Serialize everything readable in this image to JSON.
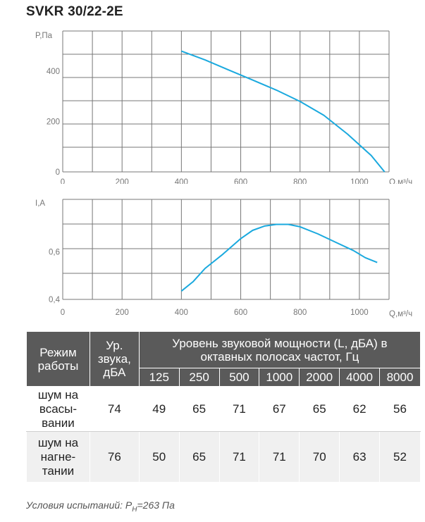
{
  "title": "SVKR 30/22-2E",
  "charts": {
    "pressure": {
      "y_label": "P,Па",
      "x_label": "Q,м³/ч",
      "y_ticks": [
        "0",
        "200",
        "400"
      ],
      "x_ticks": [
        "0",
        "200",
        "400",
        "600",
        "800",
        "1000"
      ]
    },
    "current": {
      "y_label": "I,А",
      "x_label": "Q,м³/ч",
      "y_ticks": [
        "0,4",
        "0,6"
      ],
      "x_ticks": [
        "0",
        "200",
        "400",
        "600",
        "800",
        "1000"
      ]
    }
  },
  "chart_data": [
    {
      "type": "line",
      "title": "",
      "xlabel": "Q,м³/ч",
      "ylabel": "P,Па",
      "xlim": [
        0,
        1100
      ],
      "ylim": [
        0,
        560
      ],
      "grid": true,
      "line_color": "#1aa9de",
      "series": [
        {
          "x": [
            400,
            480,
            560,
            640,
            720,
            800,
            880,
            960,
            1040,
            1085
          ],
          "y": [
            480,
            445,
            405,
            365,
            325,
            280,
            225,
            150,
            65,
            0
          ]
        }
      ]
    },
    {
      "type": "line",
      "title": "",
      "xlabel": "Q,м³/ч",
      "ylabel": "I,А",
      "xlim": [
        0,
        1100
      ],
      "ylim": [
        0.4,
        0.82
      ],
      "grid": true,
      "line_color": "#1aa9de",
      "series": [
        {
          "x": [
            400,
            440,
            480,
            540,
            600,
            640,
            680,
            720,
            760,
            800,
            860,
            920,
            980,
            1020,
            1060
          ],
          "y": [
            0.435,
            0.475,
            0.53,
            0.59,
            0.655,
            0.69,
            0.708,
            0.715,
            0.715,
            0.705,
            0.675,
            0.64,
            0.605,
            0.575,
            0.555
          ]
        }
      ]
    }
  ],
  "table": {
    "header_mode": "Режим работы",
    "header_level": "Ур. звука, дБА",
    "header_band": "Уровень звуковой мощности (L, дБА) в октавных полосах частот, Гц",
    "freqs": [
      "125",
      "250",
      "500",
      "1000",
      "2000",
      "4000",
      "8000"
    ],
    "rows": [
      {
        "mode": "шум на всасы-вании",
        "level": "74",
        "values": [
          "49",
          "65",
          "71",
          "67",
          "65",
          "62",
          "56"
        ]
      },
      {
        "mode": "шум на нагне-тании",
        "level": "76",
        "values": [
          "50",
          "65",
          "71",
          "71",
          "70",
          "63",
          "52"
        ]
      }
    ]
  },
  "footnote": {
    "prefix": "Условия испытаний: P",
    "subscript": "Н",
    "suffix": "=263 Па"
  }
}
